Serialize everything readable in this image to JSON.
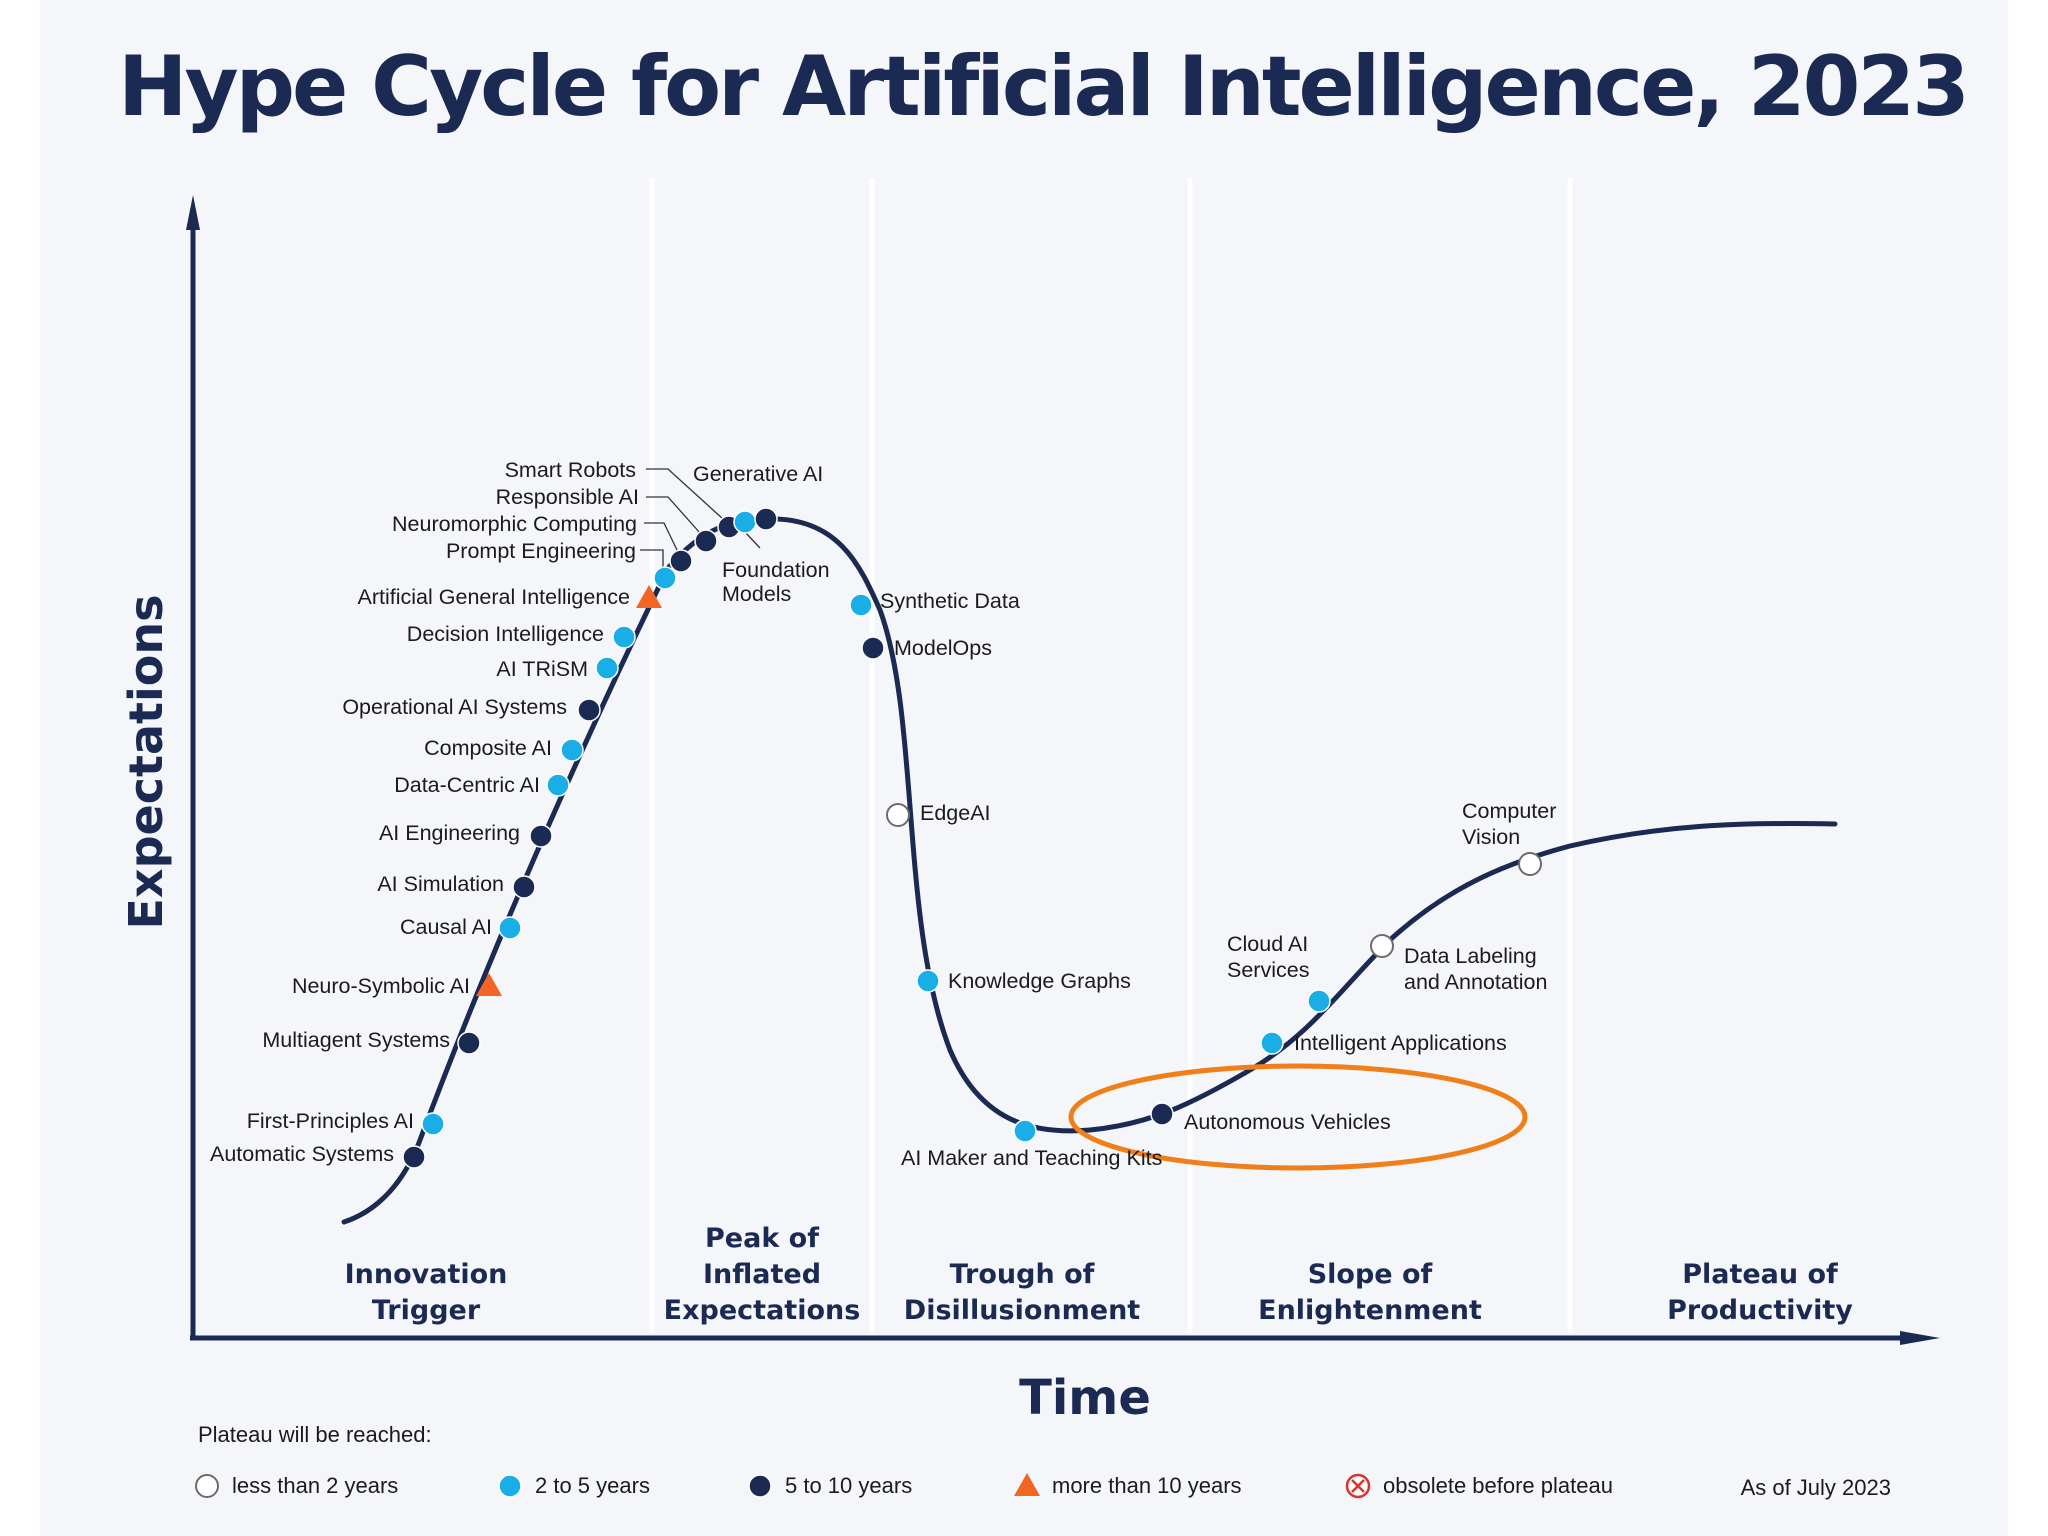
{
  "title": "Hype Cycle for Artificial Intelligence, 2023",
  "axis": {
    "y_label": "Expectations",
    "x_label": "Time"
  },
  "phases": [
    {
      "id": "innovation-trigger",
      "lines": [
        "Innovation",
        "Trigger"
      ]
    },
    {
      "id": "peak",
      "lines": [
        "Peak of",
        "Inflated",
        "Expectations"
      ]
    },
    {
      "id": "trough",
      "lines": [
        "Trough of",
        "Disillusionment"
      ]
    },
    {
      "id": "slope",
      "lines": [
        "Slope of",
        "Enlightenment"
      ]
    },
    {
      "id": "plateau",
      "lines": [
        "Plateau of",
        "Productivity"
      ]
    }
  ],
  "colors": {
    "navy": "#1b2a52",
    "cyan": "#1aaee6",
    "orange": "#f26522",
    "highlight": "#f07f1a",
    "background": "#f4f6f9"
  },
  "categories": {
    "lt2": "less than 2 years",
    "2to5": "2 to 5 years",
    "5to10": "5 to 10 years",
    "gt10": "more than 10 years",
    "obsolete": "obsolete before plateau"
  },
  "technologies": [
    {
      "key": "automatic-systems",
      "lines": [
        "Automatic Systems"
      ],
      "cat": "5to10",
      "phase": "innovation-trigger"
    },
    {
      "key": "first-principles-ai",
      "lines": [
        "First-Principles AI"
      ],
      "cat": "2to5",
      "phase": "innovation-trigger"
    },
    {
      "key": "multiagent-systems",
      "lines": [
        "Multiagent Systems"
      ],
      "cat": "5to10",
      "phase": "innovation-trigger"
    },
    {
      "key": "neuro-symbolic-ai",
      "lines": [
        "Neuro-Symbolic AI"
      ],
      "cat": "gt10",
      "phase": "innovation-trigger"
    },
    {
      "key": "causal-ai",
      "lines": [
        "Causal AI"
      ],
      "cat": "2to5",
      "phase": "innovation-trigger"
    },
    {
      "key": "ai-simulation",
      "lines": [
        "AI Simulation"
      ],
      "cat": "5to10",
      "phase": "innovation-trigger"
    },
    {
      "key": "ai-engineering",
      "lines": [
        "AI Engineering"
      ],
      "cat": "5to10",
      "phase": "innovation-trigger"
    },
    {
      "key": "data-centric-ai",
      "lines": [
        "Data-Centric AI"
      ],
      "cat": "2to5",
      "phase": "innovation-trigger"
    },
    {
      "key": "composite-ai",
      "lines": [
        "Composite AI"
      ],
      "cat": "2to5",
      "phase": "innovation-trigger"
    },
    {
      "key": "operational-ai-systems",
      "lines": [
        "Operational AI Systems"
      ],
      "cat": "5to10",
      "phase": "innovation-trigger"
    },
    {
      "key": "ai-trism",
      "lines": [
        "AI TRiSM"
      ],
      "cat": "2to5",
      "phase": "innovation-trigger"
    },
    {
      "key": "decision-intelligence",
      "lines": [
        "Decision Intelligence"
      ],
      "cat": "2to5",
      "phase": "innovation-trigger"
    },
    {
      "key": "artificial-general-intelligence",
      "lines": [
        "Artificial General Intelligence"
      ],
      "cat": "gt10",
      "phase": "peak"
    },
    {
      "key": "prompt-engineering",
      "lines": [
        "Prompt Engineering"
      ],
      "cat": "2to5",
      "phase": "peak"
    },
    {
      "key": "neuromorphic-computing",
      "lines": [
        "Neuromorphic Computing"
      ],
      "cat": "5to10",
      "phase": "peak"
    },
    {
      "key": "responsible-ai",
      "lines": [
        "Responsible AI"
      ],
      "cat": "5to10",
      "phase": "peak"
    },
    {
      "key": "smart-robots",
      "lines": [
        "Smart Robots"
      ],
      "cat": "5to10",
      "phase": "peak"
    },
    {
      "key": "foundation-models",
      "lines": [
        "Foundation",
        "Models"
      ],
      "cat": "2to5",
      "phase": "peak"
    },
    {
      "key": "generative-ai",
      "lines": [
        "Generative AI"
      ],
      "cat": "5to10",
      "phase": "peak"
    },
    {
      "key": "synthetic-data",
      "lines": [
        "Synthetic Data"
      ],
      "cat": "2to5",
      "phase": "peak"
    },
    {
      "key": "modelops",
      "lines": [
        "ModelOps"
      ],
      "cat": "5to10",
      "phase": "peak"
    },
    {
      "key": "edgeai",
      "lines": [
        "EdgeAI"
      ],
      "cat": "lt2",
      "phase": "trough"
    },
    {
      "key": "knowledge-graphs",
      "lines": [
        "Knowledge Graphs"
      ],
      "cat": "2to5",
      "phase": "trough"
    },
    {
      "key": "ai-maker-teaching-kits",
      "lines": [
        "AI Maker and Teaching Kits"
      ],
      "cat": "2to5",
      "phase": "trough"
    },
    {
      "key": "autonomous-vehicles",
      "lines": [
        "Autonomous Vehicles"
      ],
      "cat": "5to10",
      "phase": "trough",
      "highlighted": true
    },
    {
      "key": "intelligent-applications",
      "lines": [
        "Intelligent Applications"
      ],
      "cat": "2to5",
      "phase": "slope"
    },
    {
      "key": "cloud-ai-services",
      "lines": [
        "Cloud AI",
        "Services"
      ],
      "cat": "2to5",
      "phase": "slope"
    },
    {
      "key": "data-labeling",
      "lines": [
        "Data Labeling",
        "and Annotation"
      ],
      "cat": "lt2",
      "phase": "slope"
    },
    {
      "key": "computer-vision",
      "lines": [
        "Computer",
        "Vision"
      ],
      "cat": "lt2",
      "phase": "slope"
    }
  ],
  "legend": {
    "heading": "Plateau will be reached:",
    "items": [
      {
        "cat": "lt2",
        "label": "less than 2 years"
      },
      {
        "cat": "2to5",
        "label": "2 to 5 years"
      },
      {
        "cat": "5to10",
        "label": "5 to 10 years"
      },
      {
        "cat": "gt10",
        "label": "more than 10 years"
      },
      {
        "cat": "obsolete",
        "label": "obsolete before plateau"
      }
    ],
    "as_of": "As of July 2023"
  }
}
